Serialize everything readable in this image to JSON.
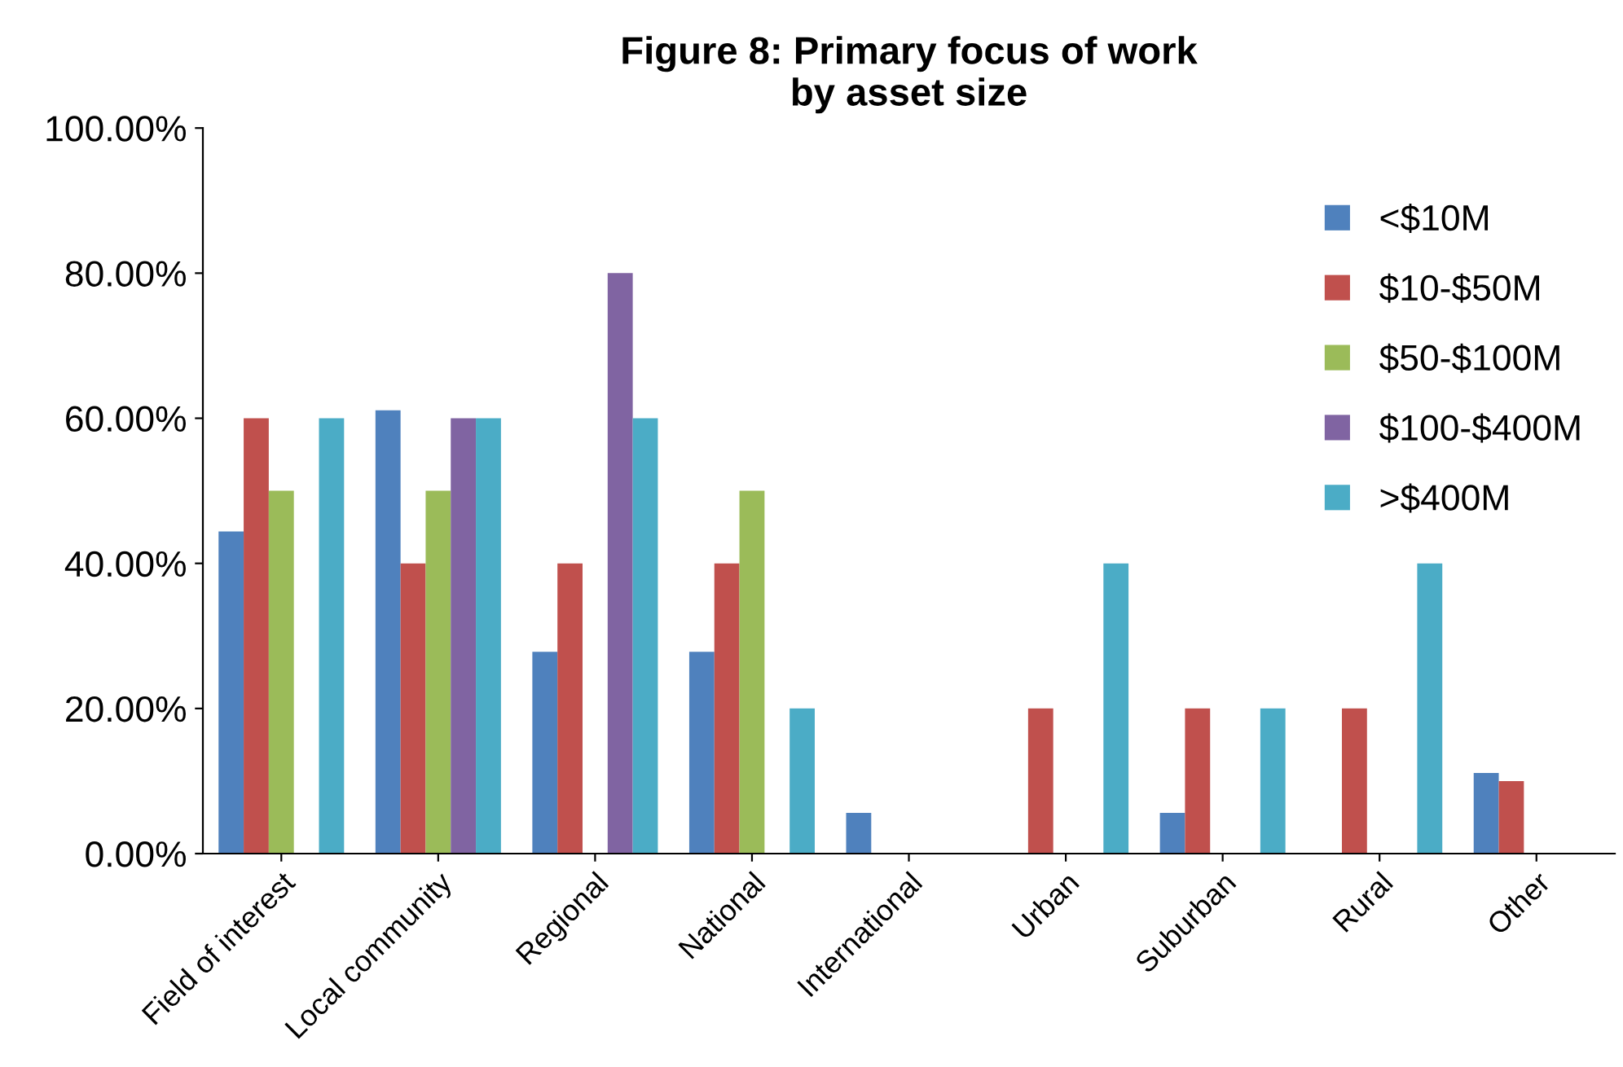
{
  "chart_data": {
    "type": "bar",
    "title": "Figure 8: Primary focus of work\nby asset size",
    "categories": [
      "Field of interest",
      "Local community",
      "Regional",
      "National",
      "International",
      "Urban",
      "Suburban",
      "Rural",
      "Other"
    ],
    "series": [
      {
        "name": "<$10M",
        "color": "#4f81bd",
        "values": [
          44.4,
          61.1,
          27.8,
          27.8,
          5.6,
          0,
          5.6,
          0,
          11.1
        ]
      },
      {
        "name": "$10-$50M",
        "color": "#c0504d",
        "values": [
          60,
          40,
          40,
          40,
          0,
          20,
          20,
          20,
          10
        ]
      },
      {
        "name": "$50-$100M",
        "color": "#9bbb59",
        "values": [
          50,
          50,
          0,
          50,
          0,
          0,
          0,
          0,
          0
        ]
      },
      {
        "name": "$100-$400M",
        "color": "#8064a2",
        "values": [
          0,
          60,
          80,
          0,
          0,
          0,
          0,
          0,
          0
        ]
      },
      {
        "name": ">$400M",
        "color": "#4bacc6",
        "values": [
          60,
          60,
          60,
          20,
          0,
          40,
          20,
          40,
          0
        ]
      }
    ],
    "ylim": [
      0,
      100
    ],
    "yticks": [
      {
        "value": 0,
        "label": "0.00%"
      },
      {
        "value": 20,
        "label": "20.00%"
      },
      {
        "value": 40,
        "label": "40.00%"
      },
      {
        "value": 60,
        "label": "60.00%"
      },
      {
        "value": 80,
        "label": "80.00%"
      },
      {
        "value": 100,
        "label": "100.00%"
      }
    ],
    "legend": "top right",
    "grid": false
  }
}
